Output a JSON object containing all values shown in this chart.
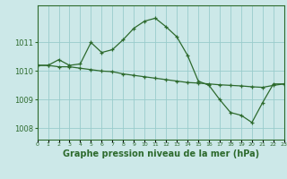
{
  "line1_y": [
    1010.2,
    1010.2,
    1010.4,
    1010.2,
    1010.25,
    1011.0,
    1010.65,
    1010.75,
    1011.1,
    1011.5,
    1011.75,
    1011.85,
    1011.55,
    1011.2,
    1010.55,
    1009.65,
    1009.5,
    1009.0,
    1008.55,
    1008.45,
    1008.2,
    1008.9,
    1009.55,
    1009.55
  ],
  "line2_y": [
    1010.2,
    1010.2,
    1010.15,
    1010.15,
    1010.1,
    1010.05,
    1010.0,
    1009.98,
    1009.9,
    1009.85,
    1009.8,
    1009.75,
    1009.7,
    1009.65,
    1009.6,
    1009.58,
    1009.55,
    1009.52,
    1009.5,
    1009.48,
    1009.45,
    1009.43,
    1009.5,
    1009.55
  ],
  "background_color": "#cce8e8",
  "grid_color": "#99cccc",
  "line_color": "#2d6a2d",
  "title": "Graphe pression niveau de la mer (hPa)",
  "title_fontsize": 7,
  "yticks": [
    1008,
    1009,
    1010,
    1011
  ],
  "ylim": [
    1007.6,
    1012.3
  ],
  "xlim": [
    0,
    23
  ]
}
